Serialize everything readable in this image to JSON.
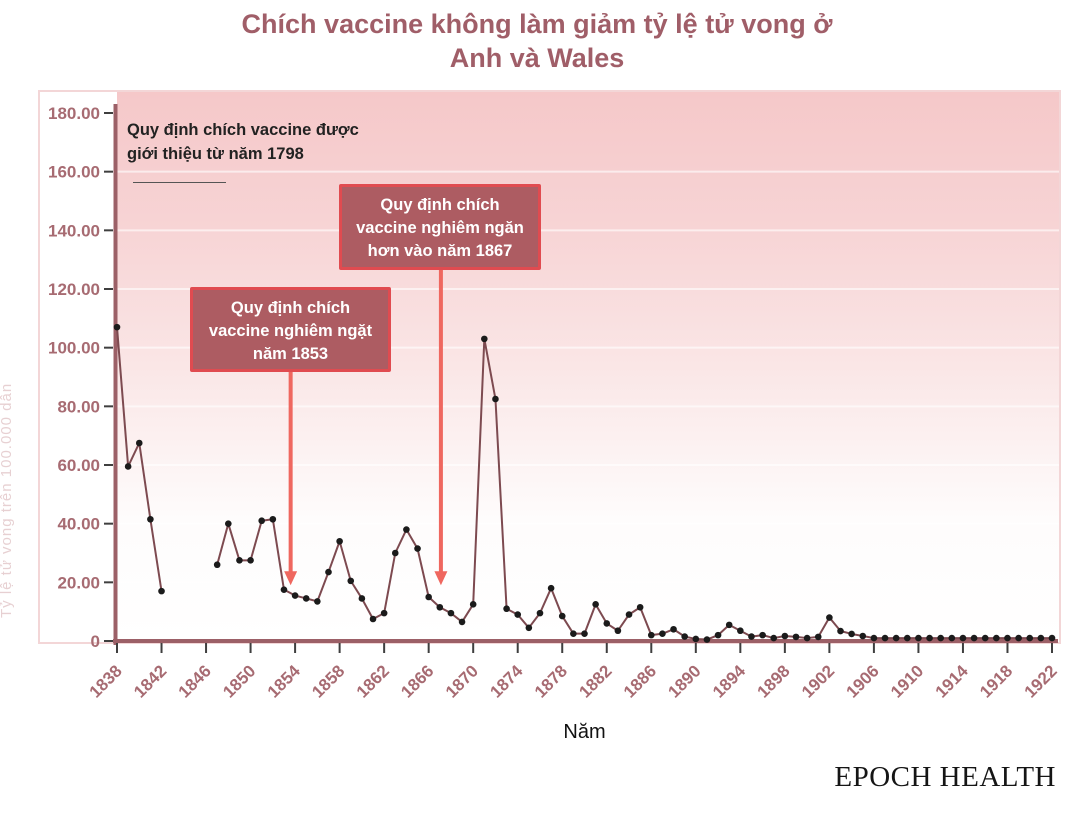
{
  "title": {
    "line1": "Chích vaccine không làm giảm tỷ lệ tử vong ở",
    "line2": "Anh và Wales"
  },
  "axes": {
    "x_label": "Năm",
    "y_axis_title_faint": "Tỷ lệ tử vong trên 100.000 dân"
  },
  "annotations": {
    "intro_note": {
      "line1": "Quy định chích vaccine được",
      "line2": "giới thiệu từ năm 1798"
    },
    "box_1853": {
      "line1": "Quy định chích",
      "line2": "vaccine nghiêm ngặt",
      "line3": "năm 1853",
      "arrow_year": 1853.6,
      "arrow_value": 19
    },
    "box_1867": {
      "line1": "Quy định chích",
      "line2": "vaccine nghiêm ngăn",
      "line3": "hơn vào năm 1867",
      "arrow_year": 1867.1,
      "arrow_value": 19
    }
  },
  "footer": {
    "brand": "EPOCH HEALTH"
  },
  "colors": {
    "title": "#a05e68",
    "axis": "#9c6067",
    "tick": "#3f3f3f",
    "tick_label": "#a76b72",
    "grid": "rgba(255,255,255,0.6)",
    "panel_border": "#f3d6d7",
    "box_fill": "#ad5c62",
    "box_border": "#e04b50",
    "arrow": "#ef675f",
    "plot_gradient": [
      {
        "at": "0%",
        "color": "#f5c8c9"
      },
      {
        "at": "25%",
        "color": "#f7d4d5"
      },
      {
        "at": "50%",
        "color": "#fae6e6"
      },
      {
        "at": "78%",
        "color": "#fefcfc"
      },
      {
        "at": "100%",
        "color": "#ffffff"
      }
    ]
  },
  "chart_data": {
    "type": "line",
    "title": "Chích vaccine không làm giảm tỷ lệ tử vong ở Anh và Wales",
    "xlabel": "Năm",
    "ylabel": "Tỷ lệ tử vong trên 100.000 dân",
    "xlim": [
      1838,
      1922
    ],
    "ylim": [
      0,
      180
    ],
    "x_tick_step": 4,
    "y_tick_step": 20,
    "y_tick_labels": [
      "180.00",
      "160.00",
      "140.00",
      "120.00",
      "100.00",
      "80.00",
      "60.00",
      "40.00",
      "20.00",
      "0"
    ],
    "grid": true,
    "legend": false,
    "gap_years_without_data": [
      1843,
      1844,
      1845,
      1846
    ],
    "series": [
      {
        "name": "smallpox-death-rate",
        "color": "#7d4a50",
        "marker_color": "#1b1b1b",
        "points": [
          [
            1838,
            107
          ],
          [
            1839,
            59.5
          ],
          [
            1840,
            67.5
          ],
          [
            1841,
            41.5
          ],
          [
            1842,
            17
          ],
          [
            1847,
            26
          ],
          [
            1848,
            40
          ],
          [
            1849,
            27.5
          ],
          [
            1850,
            27.5
          ],
          [
            1851,
            41
          ],
          [
            1852,
            41.5
          ],
          [
            1853,
            17.5
          ],
          [
            1854,
            15.5
          ],
          [
            1855,
            14.5
          ],
          [
            1856,
            13.5
          ],
          [
            1857,
            23.5
          ],
          [
            1858,
            34
          ],
          [
            1859,
            20.5
          ],
          [
            1860,
            14.5
          ],
          [
            1861,
            7.5
          ],
          [
            1862,
            9.5
          ],
          [
            1863,
            30
          ],
          [
            1864,
            38
          ],
          [
            1865,
            31.5
          ],
          [
            1866,
            15
          ],
          [
            1867,
            11.5
          ],
          [
            1868,
            9.5
          ],
          [
            1869,
            6.5
          ],
          [
            1870,
            12.5
          ],
          [
            1871,
            103
          ],
          [
            1872,
            82.5
          ],
          [
            1873,
            11
          ],
          [
            1874,
            9
          ],
          [
            1875,
            4.5
          ],
          [
            1876,
            9.5
          ],
          [
            1877,
            18
          ],
          [
            1878,
            8.5
          ],
          [
            1879,
            2.5
          ],
          [
            1880,
            2.5
          ],
          [
            1881,
            12.5
          ],
          [
            1882,
            6
          ],
          [
            1883,
            3.5
          ],
          [
            1884,
            9
          ],
          [
            1885,
            11.5
          ],
          [
            1886,
            2
          ],
          [
            1887,
            2.5
          ],
          [
            1888,
            4
          ],
          [
            1889,
            1.5
          ],
          [
            1890,
            0.7
          ],
          [
            1891,
            0.5
          ],
          [
            1892,
            2
          ],
          [
            1893,
            5.5
          ],
          [
            1894,
            3.5
          ],
          [
            1895,
            1.5
          ],
          [
            1896,
            2
          ],
          [
            1897,
            1
          ],
          [
            1898,
            1.7
          ],
          [
            1899,
            1.4
          ],
          [
            1900,
            1
          ],
          [
            1901,
            1.4
          ],
          [
            1902,
            8
          ],
          [
            1903,
            3.4
          ],
          [
            1904,
            2.4
          ],
          [
            1905,
            1.7
          ],
          [
            1906,
            1
          ],
          [
            1907,
            1
          ],
          [
            1908,
            1
          ],
          [
            1909,
            1
          ],
          [
            1910,
            1
          ],
          [
            1911,
            1
          ],
          [
            1912,
            1
          ],
          [
            1913,
            1
          ],
          [
            1914,
            1
          ],
          [
            1915,
            1
          ],
          [
            1916,
            1
          ],
          [
            1917,
            1
          ],
          [
            1918,
            1
          ],
          [
            1919,
            1
          ],
          [
            1920,
            1
          ],
          [
            1921,
            1
          ],
          [
            1922,
            1
          ]
        ]
      }
    ]
  }
}
